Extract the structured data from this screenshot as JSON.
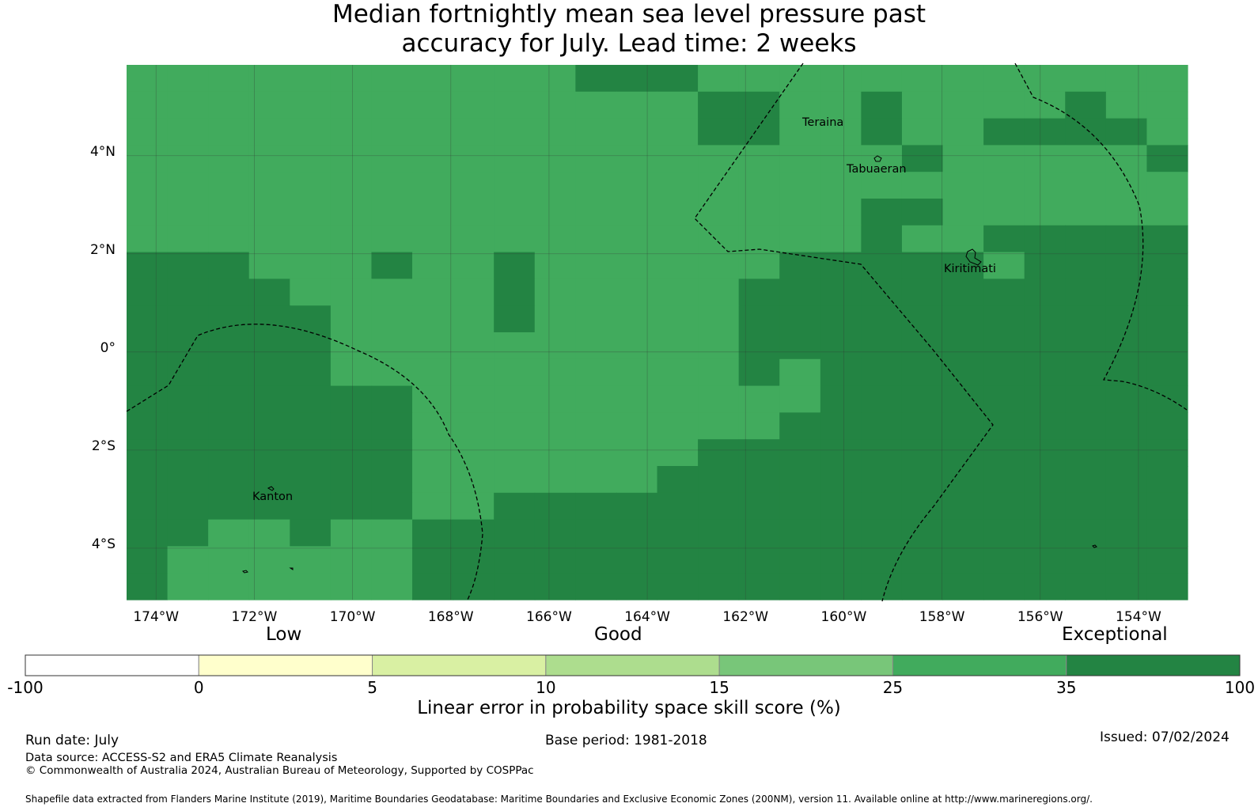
{
  "title": {
    "line1": "Median fortnightly mean sea level pressure past",
    "line2": "accuracy for July. Lead time: 2 weeks"
  },
  "map": {
    "lon_range": [
      -174.6,
      -153.0
    ],
    "lat_range": [
      -5.05,
      5.85
    ],
    "lat_ticks": [
      "4°N",
      "2°N",
      "0°",
      "2°S",
      "4°S"
    ],
    "lat_values": [
      4,
      2,
      0,
      -2,
      -4
    ],
    "lon_ticks": [
      "174°W",
      "172°W",
      "170°W",
      "168°W",
      "166°W",
      "164°W",
      "162°W",
      "160°W",
      "158°W",
      "156°W",
      "154°W"
    ],
    "lon_values": [
      -174,
      -172,
      -170,
      -168,
      -166,
      -164,
      -162,
      -160,
      -158,
      -156,
      -154
    ],
    "places": [
      {
        "name": "Teraina",
        "lon": -160.4,
        "lat": 4.68
      },
      {
        "name": "Tabuaeran",
        "lon": -159.3,
        "lat": 3.86
      },
      {
        "name": "Kiritimati",
        "lon": -157.4,
        "lat": 1.87
      },
      {
        "name": "Kanton",
        "lon": -171.7,
        "lat": -2.83
      }
    ],
    "colors": {
      "score_25_35": "#41ab5d",
      "score_35_100": "#238443",
      "grid": "#333333",
      "boundary": "#000000"
    },
    "grid_25_35_cols": 26,
    "grid_25_35_rows": 20
  },
  "colorbar": {
    "categories": [
      "Low",
      "Good",
      "Exceptional"
    ],
    "ticks": [
      "-100",
      "0",
      "5",
      "10",
      "15",
      "25",
      "35",
      "100"
    ],
    "colors": [
      "#ffffff",
      "#ffffcc",
      "#d9f0a3",
      "#addd8e",
      "#78c679",
      "#41ab5d",
      "#238443"
    ],
    "label": "Linear error in probability space skill score (%)"
  },
  "footer": {
    "run_date": "Run date: July",
    "base_period": "Base period: 1981-2018",
    "issued": "Issued: 07/02/2024",
    "data_source": "Data source: ACCESS-S2 and ERA5 Climate Reanalysis",
    "copyright": "© Commonwealth of Australia 2024, Australian Bureau of Meteorology, Supported by COSPPac",
    "shapefile": "Shapefile data extracted from Flanders Marine Institute (2019), Maritime Boundaries Geodatabase: Maritime Boundaries and Exclusive Economic Zones (200NM), version 11. Available online at http://www.marineregions.org/."
  }
}
